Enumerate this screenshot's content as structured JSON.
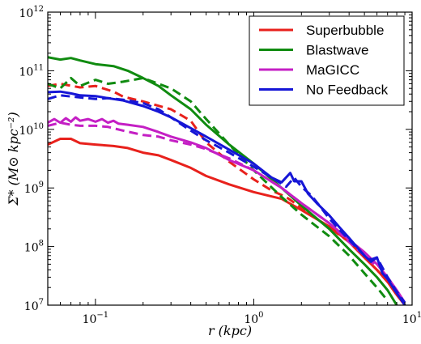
{
  "chart_data": {
    "type": "line",
    "xlabel": "r (kpc)",
    "ylabel": "Σ* (M⊙ kpc⁻²)",
    "xscale": "log",
    "yscale": "log",
    "xlim": [
      0.05,
      10
    ],
    "ylim": [
      10000000,
      1000000000000
    ],
    "xticks": [
      {
        "value": 0.1,
        "label": "10",
        "exp": "−1"
      },
      {
        "value": 1,
        "label": "10",
        "exp": "0"
      },
      {
        "value": 10,
        "label": "10",
        "exp": "1"
      }
    ],
    "yticks": [
      {
        "value": 10000000,
        "label": "10",
        "exp": "7"
      },
      {
        "value": 100000000,
        "label": "10",
        "exp": "8"
      },
      {
        "value": 1000000000,
        "label": "10",
        "exp": "9"
      },
      {
        "value": 10000000000,
        "label": "10",
        "exp": "10"
      },
      {
        "value": 100000000000,
        "label": "10",
        "exp": "11"
      },
      {
        "value": 1000000000000,
        "label": "10",
        "exp": "12"
      }
    ],
    "legend_position": "top-right",
    "series": [
      {
        "name": "Superbubble",
        "color": "#e8211c",
        "style": "solid",
        "x": [
          0.05,
          0.06,
          0.07,
          0.08,
          0.1,
          0.13,
          0.16,
          0.2,
          0.25,
          0.3,
          0.4,
          0.5,
          0.7,
          1.0,
          1.5,
          2.0,
          3.0,
          4.0,
          5.0,
          6.0,
          7.0,
          8.0,
          9.0
        ],
        "y": [
          5500000000.0,
          6900000000.0,
          6900000000.0,
          5800000000.0,
          5500000000.0,
          5200000000.0,
          4800000000.0,
          4000000000.0,
          3600000000.0,
          3000000000.0,
          2200000000.0,
          1600000000.0,
          1150000000.0,
          850000000.0,
          650000000.0,
          420000000.0,
          220000000.0,
          120000000.0,
          65000000.0,
          40000000.0,
          25000000.0,
          15000000.0,
          10000000.0
        ]
      },
      {
        "name": "Superbubble",
        "color": "#e8211c",
        "style": "dashed",
        "x": [
          0.05,
          0.06,
          0.08,
          0.1,
          0.13,
          0.15,
          0.2,
          0.3,
          0.4,
          0.5,
          0.7,
          1.0,
          1.3,
          1.6,
          2.0,
          3.0,
          4.0,
          5.0,
          6.0,
          7.0,
          8.0
        ],
        "y": [
          55000000000.0,
          60000000000.0,
          52000000000.0,
          55000000000.0,
          44000000000.0,
          36000000000.0,
          30000000000.0,
          22000000000.0,
          14000000000.0,
          6000000000.0,
          2800000000.0,
          1400000000.0,
          900000000.0,
          700000000.0,
          460000000.0,
          210000000.0,
          120000000.0,
          65000000.0,
          40000000.0,
          25000000.0,
          15000000.0
        ]
      },
      {
        "name": "Blastwave",
        "color": "#108b10",
        "style": "solid",
        "x": [
          0.05,
          0.06,
          0.07,
          0.08,
          0.1,
          0.13,
          0.16,
          0.2,
          0.25,
          0.3,
          0.4,
          0.5,
          0.7,
          1.0,
          1.5,
          2.0,
          3.0,
          4.0,
          5.0,
          6.0,
          7.0,
          8.0
        ],
        "y": [
          170000000000.0,
          155000000000.0,
          165000000000.0,
          150000000000.0,
          130000000000.0,
          120000000000.0,
          100000000000.0,
          75000000000.0,
          55000000000.0,
          38000000000.0,
          22000000000.0,
          12000000000.0,
          5500000000.0,
          2600000000.0,
          1000000000.0,
          500000000.0,
          200000000.0,
          90000000.0,
          50000000.0,
          30000000.0,
          18000000.0,
          10000000.0
        ]
      },
      {
        "name": "Blastwave",
        "color": "#108b10",
        "style": "dashed",
        "x": [
          0.05,
          0.06,
          0.07,
          0.08,
          0.1,
          0.12,
          0.15,
          0.2,
          0.25,
          0.3,
          0.4,
          0.5,
          0.7,
          1.0,
          1.5,
          2.0,
          3.0,
          4.0,
          5.0,
          6.0,
          7.0
        ],
        "y": [
          60000000000.0,
          50000000000.0,
          75000000000.0,
          55000000000.0,
          70000000000.0,
          60000000000.0,
          65000000000.0,
          75000000000.0,
          60000000000.0,
          50000000000.0,
          30000000000.0,
          15000000000.0,
          5500000000.0,
          2000000000.0,
          700000000.0,
          350000000.0,
          150000000.0,
          70000000.0,
          35000000.0,
          20000000.0,
          12000000.0
        ]
      },
      {
        "name": "MaGICC",
        "color": "#c41fc4",
        "style": "solid",
        "x": [
          0.05,
          0.055,
          0.06,
          0.065,
          0.07,
          0.075,
          0.08,
          0.09,
          0.1,
          0.11,
          0.12,
          0.13,
          0.14,
          0.16,
          0.2,
          0.25,
          0.3,
          0.4,
          0.5,
          0.7,
          1.0,
          1.5,
          2.0,
          3.0,
          4.0,
          5.0,
          6.0,
          7.0,
          8.0,
          9.0
        ],
        "y": [
          13000000000.0,
          15000000000.0,
          13000000000.0,
          15500000000.0,
          13500000000.0,
          16000000000.0,
          14000000000.0,
          15000000000.0,
          13500000000.0,
          15000000000.0,
          13000000000.0,
          14000000000.0,
          12500000000.0,
          12000000000.0,
          11000000000.0,
          9000000000.0,
          7500000000.0,
          6000000000.0,
          4800000000.0,
          3000000000.0,
          2000000000.0,
          1000000000.0,
          550000000.0,
          250000000.0,
          130000000.0,
          80000000.0,
          50000000.0,
          30000000.0,
          18000000.0,
          11000000.0
        ]
      },
      {
        "name": "MaGICC",
        "color": "#c41fc4",
        "style": "dashed",
        "x": [
          0.05,
          0.06,
          0.07,
          0.08,
          0.1,
          0.12,
          0.15,
          0.2,
          0.25,
          0.3,
          0.4,
          0.5,
          0.7,
          1.0,
          1.5,
          2.0,
          3.0,
          4.0,
          5.0,
          6.0
        ],
        "y": [
          11500000000.0,
          13000000000.0,
          12000000000.0,
          11500000000.0,
          11500000000.0,
          11000000000.0,
          9500000000.0,
          8000000000.0,
          7500000000.0,
          6500000000.0,
          5500000000.0,
          4600000000.0,
          3200000000.0,
          2000000000.0,
          1000000000.0,
          550000000.0,
          250000000.0,
          120000000.0,
          70000000.0,
          45000000.0
        ]
      },
      {
        "name": "No Feedback",
        "color": "#1616d6",
        "style": "solid",
        "x": [
          0.05,
          0.06,
          0.07,
          0.08,
          0.1,
          0.12,
          0.15,
          0.2,
          0.25,
          0.3,
          0.4,
          0.5,
          0.7,
          1.0,
          1.3,
          1.5,
          1.7,
          1.8,
          2.0,
          2.2,
          2.5,
          3.0,
          3.5,
          4.0,
          5.0,
          5.5,
          6.0,
          6.5,
          7.0,
          8.0,
          9.0
        ],
        "y": [
          43000000000.0,
          44000000000.0,
          41000000000.0,
          38000000000.0,
          37000000000.0,
          34000000000.0,
          31000000000.0,
          25000000000.0,
          20000000000.0,
          16000000000.0,
          10500000000.0,
          7500000000.0,
          4500000000.0,
          2600000000.0,
          1500000000.0,
          1250000000.0,
          1800000000.0,
          1300000000.0,
          1300000000.0,
          800000000.0,
          550000000.0,
          340000000.0,
          210000000.0,
          140000000.0,
          70000000.0,
          55000000.0,
          65000000.0,
          35000000.0,
          28000000.0,
          16000000.0,
          10000000.0
        ]
      },
      {
        "name": "No Feedback",
        "color": "#1616d6",
        "style": "dashed",
        "x": [
          0.05,
          0.06,
          0.08,
          0.1,
          0.12,
          0.15,
          0.2,
          0.25,
          0.3,
          0.4,
          0.5,
          0.7,
          1.0,
          1.3,
          1.6,
          1.8,
          2.0,
          2.3,
          2.6,
          3.0,
          3.5,
          4.0,
          5.0,
          5.5,
          6.0,
          7.0,
          8.0,
          9.0
        ],
        "y": [
          33000000000.0,
          38000000000.0,
          35000000000.0,
          33000000000.0,
          34000000000.0,
          32000000000.0,
          28000000000.0,
          22000000000.0,
          16000000000.0,
          9500000000.0,
          6500000000.0,
          4000000000.0,
          2300000000.0,
          1500000000.0,
          1050000000.0,
          1500000000.0,
          1050000000.0,
          750000000.0,
          500000000.0,
          300000000.0,
          190000000.0,
          130000000.0,
          70000000.0,
          60000000.0,
          65000000.0,
          30000000.0,
          17000000.0,
          11000000.0
        ]
      }
    ],
    "legend": [
      {
        "label": "Superbubble",
        "color": "#e8211c"
      },
      {
        "label": "Blastwave",
        "color": "#108b10"
      },
      {
        "label": "MaGICC",
        "color": "#c41fc4"
      },
      {
        "label": "No Feedback",
        "color": "#1616d6"
      }
    ]
  }
}
